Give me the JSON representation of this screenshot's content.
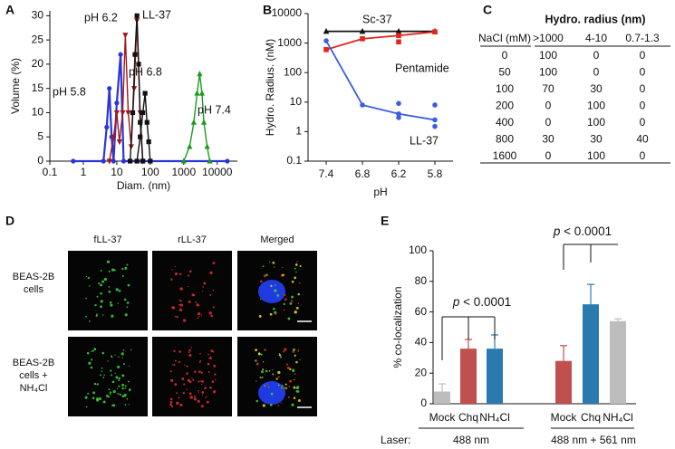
{
  "chart_data": [
    {
      "panel": "A",
      "type": "line",
      "x_label": "Diam. (nm)",
      "y_label": "Volume (%)",
      "x_log": true,
      "xlim": [
        0.1,
        40000
      ],
      "xticks": [
        0.1,
        1,
        10,
        100,
        1000,
        10000
      ],
      "ylim": [
        0,
        31
      ],
      "yticks": [
        0,
        5,
        10,
        15,
        20,
        25,
        30
      ],
      "series": [
        {
          "name": "pH 5.8",
          "color": "#2a35d8",
          "marker": "circle",
          "x": [
            0.5,
            4,
            5,
            6,
            7,
            8,
            10,
            13,
            16,
            20000
          ],
          "values": [
            0,
            0,
            7,
            15,
            5,
            0,
            12,
            22,
            0,
            0
          ]
        },
        {
          "name": "pH 6.2",
          "color": "#a3181c",
          "marker": "triangle-down",
          "x": [
            6,
            8,
            10,
            12,
            15,
            18,
            22,
            27,
            33,
            40,
            50,
            60
          ],
          "values": [
            0,
            5,
            10,
            4,
            10,
            26,
            10,
            3,
            15,
            29,
            10,
            0
          ]
        },
        {
          "name": "LL-37",
          "color": "#111111",
          "marker": "square",
          "x": [
            25,
            30,
            35,
            40,
            45,
            50,
            60
          ],
          "values": [
            0,
            10,
            22,
            30,
            20,
            8,
            0
          ]
        },
        {
          "name": "pH 6.8",
          "color": "#111111",
          "marker": "square",
          "x": [
            40,
            50,
            60,
            70,
            80,
            90,
            100
          ],
          "values": [
            0,
            5,
            10,
            14,
            8,
            4,
            0
          ]
        },
        {
          "name": "pH 7.4",
          "color": "#1e9a1e",
          "marker": "triangle-up",
          "x": [
            1000,
            1500,
            2000,
            2500,
            3000,
            3500,
            4000,
            5000,
            6000
          ],
          "values": [
            0,
            3,
            8,
            14,
            18,
            14,
            8,
            3,
            0
          ]
        }
      ]
    },
    {
      "panel": "B",
      "type": "line",
      "x_label": "pH",
      "y_label": "Hydro. Radius. (nM)",
      "y_log": true,
      "categories": [
        "7.4",
        "6.8",
        "6.2",
        "5.8"
      ],
      "ylim": [
        0.1,
        10000
      ],
      "yticks": [
        0.1,
        1,
        10,
        100,
        1000,
        10000
      ],
      "series": [
        {
          "name": "Sc-37",
          "color": "#111111",
          "marker": "triangle-up",
          "values": [
            2500,
            2500,
            2500,
            2500
          ]
        },
        {
          "name": "Pentamide",
          "color": "#e0261c",
          "marker": "square",
          "values": [
            600,
            1400,
            1800,
            2400
          ],
          "replicates": [
            [],
            [],
            [
              1100
            ],
            []
          ]
        },
        {
          "name": "LL-37",
          "color": "#3a5fe0",
          "marker": "circle",
          "values": [
            1200,
            8,
            4,
            2.5
          ],
          "replicates": [
            [],
            [],
            [
              9,
              3
            ],
            [
              8,
              1.5
            ]
          ]
        }
      ]
    },
    {
      "panel": "E",
      "type": "bar",
      "y_label": "% co-localization",
      "categories": [
        "Mock",
        "Chq",
        "NH₄Cl",
        "Mock",
        "Chq",
        "NH₄Cl"
      ],
      "values": [
        8,
        36,
        36,
        28,
        65,
        54
      ],
      "errors": [
        5,
        6,
        9,
        10,
        13,
        1.5
      ],
      "colors": [
        "#bdbdbd",
        "#c0504d",
        "#2a7ab0",
        "#c0504d",
        "#2a7ab0",
        "#bdbdbd"
      ],
      "ylim": [
        0,
        100
      ],
      "yticks": [
        0,
        20,
        40,
        60,
        80,
        100
      ],
      "x_title": "Laser:",
      "groups": [
        "488 nm",
        "488 nm + 561 nm"
      ],
      "annotations": [
        "p < 0.0001",
        "p < 0.0001"
      ]
    }
  ],
  "table": {
    "panel": "C",
    "title": "Hydro. radius (nm)",
    "columns": [
      "NaCl (mM)",
      ">1000",
      "4-10",
      "0.7-1.3"
    ],
    "rows": [
      [
        0,
        100,
        0,
        0
      ],
      [
        50,
        100,
        0,
        0
      ],
      [
        100,
        70,
        30,
        0
      ],
      [
        200,
        0,
        100,
        0
      ],
      [
        400,
        0,
        100,
        0
      ],
      [
        800,
        30,
        30,
        40
      ],
      [
        1600,
        0,
        100,
        0
      ]
    ]
  },
  "micrographs": {
    "panel": "D",
    "columns": [
      "fLL-37",
      "rLL-37",
      "Merged"
    ],
    "rows": [
      "BEAS-2B cells",
      "BEAS-2B cells + NH₄Cl"
    ]
  }
}
